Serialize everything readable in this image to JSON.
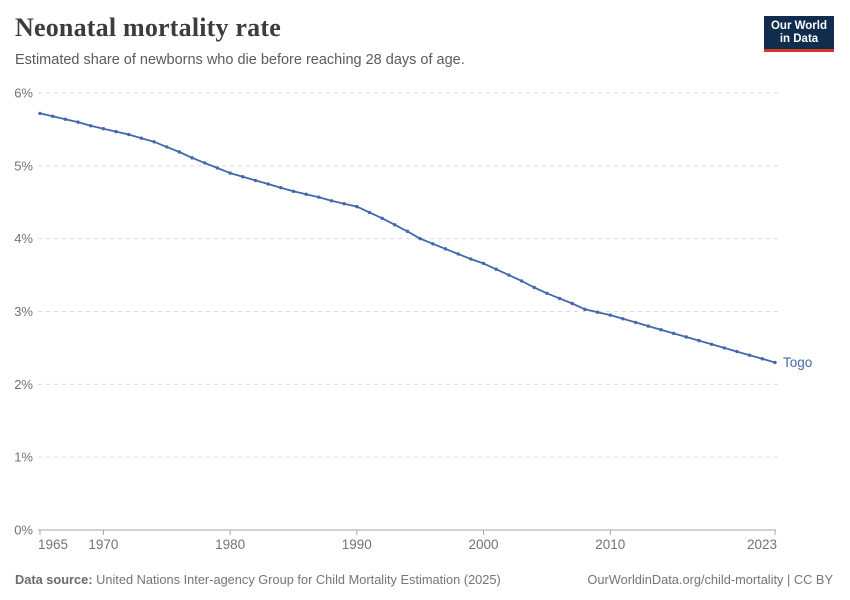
{
  "header": {
    "title": "Neonatal mortality rate",
    "subtitle": "Estimated share of newborns who die before reaching 28 days of age.",
    "logo": {
      "line1": "Our World",
      "line2": "in Data"
    }
  },
  "footer": {
    "source_label": "Data source:",
    "source_text": "United Nations Inter-agency Group for Child Mortality Estimation (2025)",
    "credit": "OurWorldinData.org/child-mortality | CC BY"
  },
  "colors": {
    "line": "#4468ab",
    "grid": "#dcdcdc",
    "axis": "#a5a5a5",
    "tick_label": "#737373",
    "logo_bg": "#102d4e",
    "logo_red": "#d7352c"
  },
  "chart_data": {
    "type": "line",
    "title": "Neonatal mortality rate",
    "subtitle": "Estimated share of newborns who die before reaching 28 days of age.",
    "xlabel": "",
    "ylabel": "",
    "unit": "%",
    "grid": true,
    "legend": "end-of-line entity label",
    "ylim": [
      0,
      6
    ],
    "yticks": [
      0,
      1,
      2,
      3,
      4,
      5,
      6
    ],
    "xticks": [
      1965,
      1970,
      1980,
      1990,
      2000,
      2010,
      2023
    ],
    "x": [
      1965,
      1966,
      1967,
      1968,
      1969,
      1970,
      1971,
      1972,
      1973,
      1974,
      1975,
      1976,
      1977,
      1978,
      1979,
      1980,
      1981,
      1982,
      1983,
      1984,
      1985,
      1986,
      1987,
      1988,
      1989,
      1990,
      1991,
      1992,
      1993,
      1994,
      1995,
      1996,
      1997,
      1998,
      1999,
      2000,
      2001,
      2002,
      2003,
      2004,
      2005,
      2006,
      2007,
      2008,
      2009,
      2010,
      2011,
      2012,
      2013,
      2014,
      2015,
      2016,
      2017,
      2018,
      2019,
      2020,
      2021,
      2022,
      2023
    ],
    "series": [
      {
        "name": "Togo",
        "values": [
          5.72,
          5.68,
          5.64,
          5.6,
          5.55,
          5.51,
          5.47,
          5.43,
          5.38,
          5.33,
          5.26,
          5.19,
          5.11,
          5.04,
          4.97,
          4.9,
          4.85,
          4.8,
          4.75,
          4.7,
          4.65,
          4.61,
          4.57,
          4.52,
          4.48,
          4.44,
          4.36,
          4.28,
          4.19,
          4.1,
          4.0,
          3.93,
          3.86,
          3.79,
          3.72,
          3.66,
          3.58,
          3.5,
          3.42,
          3.33,
          3.25,
          3.18,
          3.11,
          3.03,
          2.99,
          2.95,
          2.9,
          2.85,
          2.8,
          2.75,
          2.7,
          2.65,
          2.6,
          2.55,
          2.5,
          2.45,
          2.4,
          2.35,
          2.3
        ]
      }
    ]
  }
}
